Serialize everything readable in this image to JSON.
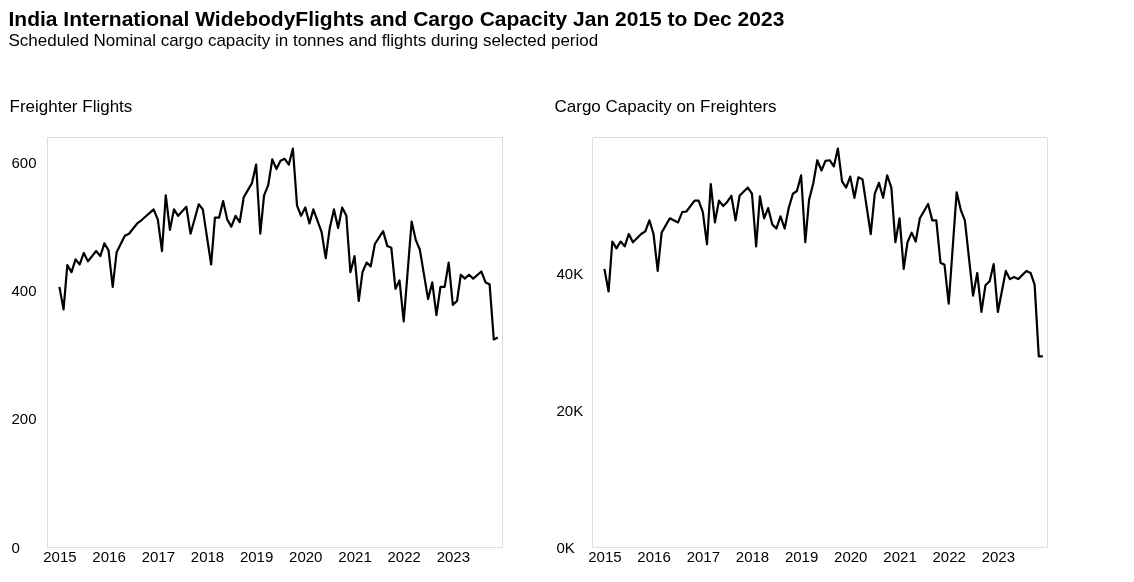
{
  "chart_data": [
    {
      "type": "line",
      "title": "India International WidebodyFlights and Cargo Capacity Jan 2015 to Dec 2023",
      "subtitle": "Scheduled Nominal cargo capacity in tonnes and flights during selected period",
      "ylabel": "Freighter Flights",
      "x": [
        "2015-01",
        "2015-02",
        "2015-03",
        "2015-04",
        "2015-05",
        "2015-06",
        "2015-07",
        "2015-08",
        "2015-10",
        "2015-11",
        "2015-12",
        "2016-01",
        "2016-02",
        "2016-03",
        "2016-05",
        "2016-06",
        "2016-08",
        "2016-09",
        "2016-12",
        "2017-01",
        "2017-02",
        "2017-03",
        "2017-04",
        "2017-05",
        "2017-06",
        "2017-08",
        "2017-09",
        "2017-11",
        "2017-12",
        "2018-02",
        "2018-03",
        "2018-04",
        "2018-05",
        "2018-06",
        "2018-07",
        "2018-08",
        "2018-09",
        "2018-10",
        "2018-12",
        "2019-01",
        "2019-02",
        "2019-03",
        "2019-04",
        "2019-05",
        "2019-06",
        "2019-07",
        "2019-08",
        "2019-09",
        "2019-10",
        "2019-11",
        "2019-12",
        "2020-01",
        "2020-02",
        "2020-03",
        "2020-05",
        "2020-06",
        "2020-07",
        "2020-08",
        "2020-09",
        "2020-10",
        "2020-11",
        "2020-12",
        "2021-01",
        "2021-02",
        "2021-03",
        "2021-04",
        "2021-05",
        "2021-06",
        "2021-08",
        "2021-09",
        "2021-10",
        "2021-11",
        "2021-12",
        "2022-01",
        "2022-03",
        "2022-04",
        "2022-05",
        "2022-07",
        "2022-08",
        "2022-09",
        "2022-10",
        "2022-11",
        "2022-12",
        "2023-01",
        "2023-02",
        "2023-03",
        "2023-04",
        "2023-05",
        "2023-06",
        "2023-08",
        "2023-09",
        "2023-10",
        "2023-11",
        "2023-12"
      ],
      "series": [
        {
          "color": "#000000",
          "values": [
            406,
            371,
            440,
            429,
            449,
            441,
            459,
            446,
            462,
            454,
            474,
            463,
            406,
            460,
            486,
            489,
            505,
            510,
            527,
            511,
            462,
            549,
            495,
            527,
            517,
            531,
            489,
            535,
            527,
            441,
            514,
            514,
            540,
            511,
            500,
            517,
            507,
            546,
            568,
            597,
            489,
            549,
            565,
            605,
            590,
            603,
            606,
            597,
            622,
            533,
            517,
            530,
            505,
            527,
            492,
            451,
            498,
            527,
            498,
            530,
            517,
            429,
            454,
            384,
            429,
            444,
            438,
            473,
            493,
            470,
            467,
            403,
            416,
            352,
            508,
            479,
            464,
            387,
            413,
            362,
            406,
            406,
            444,
            378,
            384,
            425,
            419,
            425,
            419,
            430,
            413,
            410,
            324,
            327
          ]
        }
      ],
      "xlim": [
        "2014-10",
        "2024-01"
      ],
      "xticks": [
        "2015",
        "2016",
        "2017",
        "2018",
        "2019",
        "2020",
        "2021",
        "2022",
        "2023"
      ],
      "ylim": [
        0,
        640
      ],
      "yticks": [
        0,
        200,
        400,
        600
      ],
      "grid": false
    },
    {
      "type": "line",
      "ylabel": "Cargo Capacity on Freighters",
      "x": [
        "2015-01",
        "2015-02",
        "2015-03",
        "2015-04",
        "2015-05",
        "2015-06",
        "2015-07",
        "2015-08",
        "2015-10",
        "2015-11",
        "2015-12",
        "2016-01",
        "2016-02",
        "2016-03",
        "2016-05",
        "2016-07",
        "2016-08",
        "2016-09",
        "2016-11",
        "2016-12",
        "2017-01",
        "2017-02",
        "2017-03",
        "2017-04",
        "2017-05",
        "2017-06",
        "2017-07",
        "2017-08",
        "2017-09",
        "2017-10",
        "2017-12",
        "2018-01",
        "2018-02",
        "2018-03",
        "2018-04",
        "2018-05",
        "2018-06",
        "2018-07",
        "2018-08",
        "2018-09",
        "2018-10",
        "2018-11",
        "2018-12",
        "2019-01",
        "2019-02",
        "2019-03",
        "2019-04",
        "2019-05",
        "2019-06",
        "2019-07",
        "2019-08",
        "2019-09",
        "2019-10",
        "2019-11",
        "2019-12",
        "2020-01",
        "2020-02",
        "2020-03",
        "2020-04",
        "2020-06",
        "2020-07",
        "2020-08",
        "2020-09",
        "2020-10",
        "2020-11",
        "2020-12",
        "2021-01",
        "2021-02",
        "2021-03",
        "2021-04",
        "2021-05",
        "2021-06",
        "2021-08",
        "2021-09",
        "2021-10",
        "2021-11",
        "2021-12",
        "2022-01",
        "2022-03",
        "2022-04",
        "2022-05",
        "2022-07",
        "2022-08",
        "2022-09",
        "2022-10",
        "2022-11",
        "2022-12",
        "2023-01",
        "2023-03",
        "2023-04",
        "2023-05",
        "2023-06",
        "2023-08",
        "2023-09",
        "2023-10",
        "2023-11",
        "2023-12"
      ],
      "series": [
        {
          "color": "#000000",
          "values": [
            40700,
            37400,
            44700,
            43700,
            44700,
            44000,
            45800,
            44600,
            45800,
            46200,
            47800,
            45800,
            40400,
            46000,
            48100,
            47500,
            49000,
            49100,
            50700,
            50700,
            49000,
            44300,
            53100,
            47500,
            50700,
            49900,
            50500,
            51400,
            47800,
            51400,
            52600,
            51700,
            44000,
            51300,
            48100,
            49600,
            47200,
            46600,
            48400,
            46600,
            49600,
            51700,
            52100,
            54400,
            44600,
            50800,
            53200,
            56600,
            55100,
            56500,
            56600,
            55700,
            58300,
            53500,
            52600,
            54200,
            51100,
            54100,
            53800,
            45800,
            51700,
            53300,
            51100,
            54400,
            52600,
            44600,
            48100,
            40700,
            44600,
            46000,
            44700,
            48100,
            50200,
            47800,
            47800,
            41600,
            41300,
            35600,
            51900,
            49300,
            47800,
            36800,
            40100,
            34400,
            38300,
            38900,
            41400,
            34400,
            40400,
            39200,
            39500,
            39200,
            40400,
            40100,
            38400,
            27900,
            27900
          ]
        }
      ],
      "xlim": [
        "2014-10",
        "2024-01"
      ],
      "xticks": [
        "2015",
        "2016",
        "2017",
        "2018",
        "2019",
        "2020",
        "2021",
        "2022",
        "2023"
      ],
      "ylim": [
        0,
        60000
      ],
      "yticks": [
        {
          "value": 0,
          "label": "0K"
        },
        {
          "value": 20000,
          "label": "20K"
        },
        {
          "value": 40000,
          "label": "40K"
        }
      ],
      "grid": false
    }
  ]
}
